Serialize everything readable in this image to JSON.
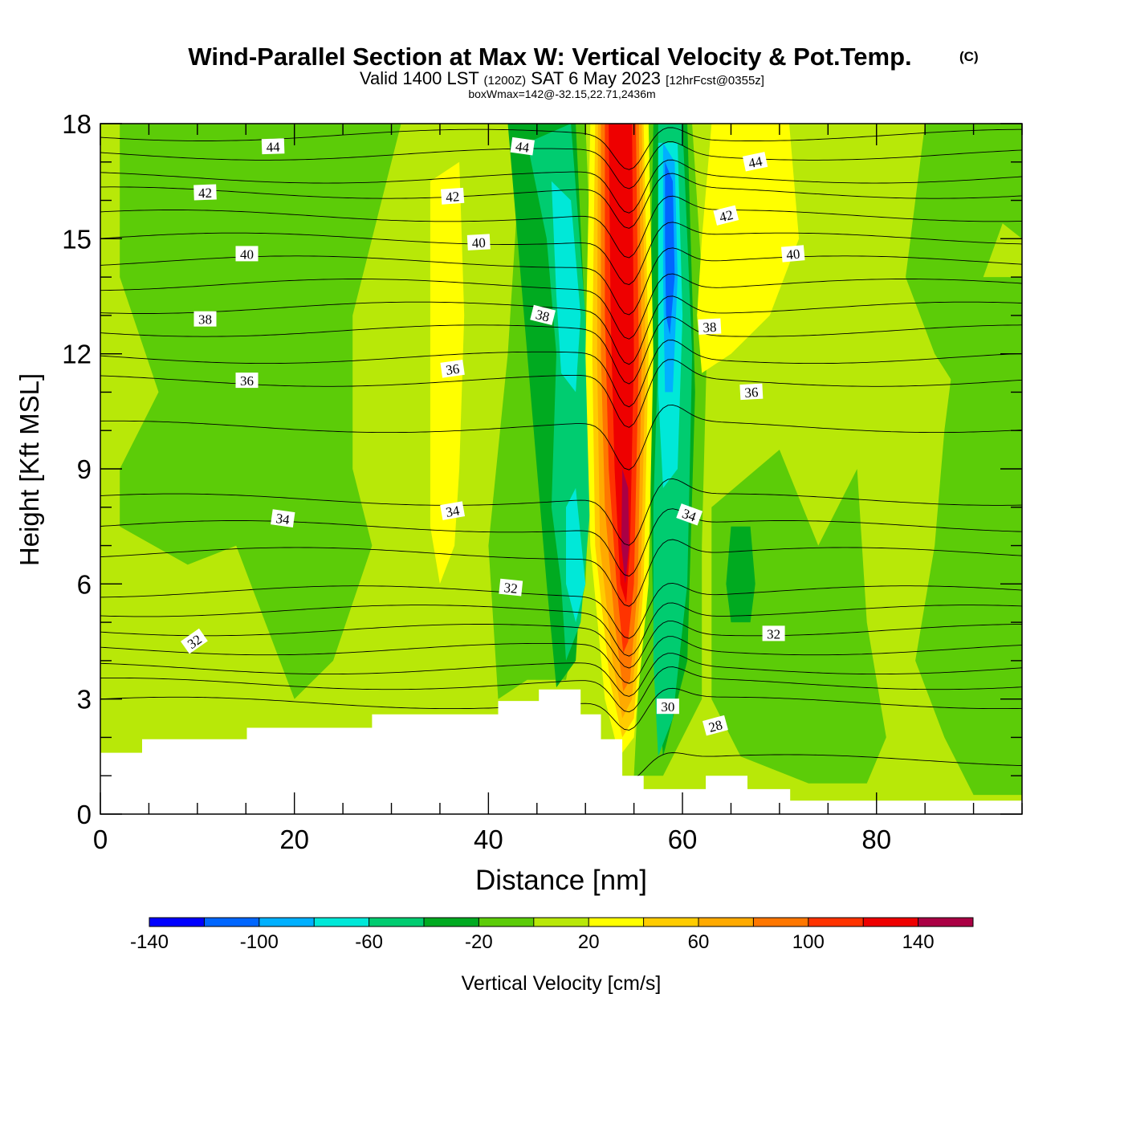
{
  "chart_data": {
    "type": "heatmap",
    "title": "Wind-Parallel Section at Max W: Vertical Velocity & Pot.Temp.",
    "copyright_mark": "(C)",
    "subtitle_valid": "Valid 1400 LST",
    "subtitle_utc": "(1200Z)",
    "subtitle_date": "SAT 6 May 2023",
    "subtitle_forecast": "[12hrFcst@0355z]",
    "subtitle_box": "boxWmax=142@-32.15,22.71,2436m",
    "xlabel": "Distance [nm]",
    "ylabel": "Height [Kft MSL]",
    "xlim": [
      0,
      95
    ],
    "ylim": [
      0,
      18
    ],
    "x_ticks": [
      0,
      20,
      40,
      60,
      80
    ],
    "y_ticks": [
      0,
      3,
      6,
      9,
      12,
      15,
      18
    ],
    "colorbar": {
      "label": "Vertical Velocity [cm/s]",
      "bounds": [
        -140,
        160
      ],
      "tick_values": [
        -140,
        -100,
        -60,
        -20,
        20,
        60,
        100,
        140
      ],
      "tick_labels": [
        "-140",
        "-100",
        "-60",
        "-20",
        "20",
        "60",
        "100",
        "140"
      ],
      "colors": [
        "#0000ff",
        "#0066ff",
        "#00b0ff",
        "#00e8d8",
        "#00cc70",
        "#00aa20",
        "#5ccc08",
        "#b8e808",
        "#ffff00",
        "#ffcc00",
        "#ffaa00",
        "#ff7700",
        "#ff3300",
        "#ee0000",
        "#aa0044"
      ]
    },
    "terrain": [
      [
        0,
        1.6
      ],
      [
        4.3,
        1.6
      ],
      [
        4.3,
        1.95
      ],
      [
        15.1,
        1.95
      ],
      [
        15.1,
        2.25
      ],
      [
        28,
        2.25
      ],
      [
        28,
        2.6
      ],
      [
        41,
        2.6
      ],
      [
        41,
        2.95
      ],
      [
        45.2,
        2.95
      ],
      [
        45.2,
        3.25
      ],
      [
        49.5,
        3.25
      ],
      [
        49.5,
        2.6
      ],
      [
        51.6,
        2.6
      ],
      [
        51.6,
        1.95
      ],
      [
        53.8,
        1.95
      ],
      [
        53.8,
        1.0
      ],
      [
        56,
        1.0
      ],
      [
        56,
        0.65
      ],
      [
        62.4,
        0.65
      ],
      [
        62.4,
        1.0
      ],
      [
        66.7,
        1.0
      ],
      [
        66.7,
        0.65
      ],
      [
        71.1,
        0.65
      ],
      [
        71.1,
        0.35
      ],
      [
        95,
        0.35
      ]
    ],
    "w_regions": [
      {
        "w": -10,
        "poly": [
          [
            2,
            18
          ],
          [
            31,
            18
          ],
          [
            29,
            16
          ],
          [
            26,
            13
          ],
          [
            26,
            9
          ],
          [
            28,
            7
          ],
          [
            24,
            4
          ],
          [
            20,
            3
          ],
          [
            17,
            5
          ],
          [
            14,
            7
          ],
          [
            9,
            6.5
          ],
          [
            2,
            7.5
          ],
          [
            2,
            9
          ],
          [
            6,
            11
          ],
          [
            2,
            14
          ]
        ]
      },
      {
        "w": -10,
        "poly": [
          [
            45,
            18
          ],
          [
            50,
            18
          ],
          [
            51,
            12
          ],
          [
            50,
            6
          ],
          [
            48,
            3.5
          ],
          [
            44,
            3.5
          ],
          [
            41,
            3
          ],
          [
            40,
            7
          ],
          [
            42,
            12
          ],
          [
            43,
            16
          ]
        ]
      },
      {
        "w": -10,
        "poly": [
          [
            56,
            18
          ],
          [
            61,
            18
          ],
          [
            62.5,
            12
          ],
          [
            62,
            7
          ],
          [
            62,
            3
          ],
          [
            58,
            1
          ],
          [
            55,
            1
          ],
          [
            56,
            6
          ],
          [
            55,
            12
          ]
        ]
      },
      {
        "w": -10,
        "poly": [
          [
            63,
            8
          ],
          [
            70,
            9.5
          ],
          [
            74,
            7
          ],
          [
            78,
            9
          ],
          [
            79,
            5
          ],
          [
            81,
            2
          ],
          [
            79,
            0.8
          ],
          [
            73,
            0.8
          ],
          [
            66,
            1.5
          ],
          [
            63,
            3
          ]
        ]
      },
      {
        "w": -10,
        "poly": [
          [
            85,
            18
          ],
          [
            95,
            18
          ],
          [
            95,
            15
          ],
          [
            93,
            15.4
          ],
          [
            91,
            14
          ],
          [
            88,
            11.2
          ],
          [
            86,
            12
          ],
          [
            83,
            14
          ]
        ]
      },
      {
        "w": -10,
        "poly": [
          [
            95,
            14
          ],
          [
            89,
            14
          ],
          [
            87,
            10
          ],
          [
            86,
            7
          ],
          [
            84,
            4
          ],
          [
            87,
            2
          ],
          [
            90,
            0.5
          ],
          [
            95,
            0.5
          ]
        ]
      },
      {
        "w": -30,
        "poly": [
          [
            42,
            18
          ],
          [
            49,
            18
          ],
          [
            50.5,
            10
          ],
          [
            49,
            4
          ],
          [
            47,
            3.3
          ],
          [
            46,
            6
          ],
          [
            44,
            12
          ]
        ]
      },
      {
        "w": -30,
        "poly": [
          [
            57,
            18
          ],
          [
            60.5,
            18
          ],
          [
            61.3,
            11
          ],
          [
            60.5,
            4
          ],
          [
            58,
            1.5
          ],
          [
            57,
            5
          ],
          [
            56.5,
            11
          ]
        ]
      },
      {
        "w": -30,
        "poly": [
          [
            65,
            7.5
          ],
          [
            67,
            7.5
          ],
          [
            67.5,
            6
          ],
          [
            67,
            5
          ],
          [
            65,
            5
          ],
          [
            64.5,
            6
          ]
        ]
      },
      {
        "w": 30,
        "poly": [
          [
            34,
            16.5
          ],
          [
            37,
            17
          ],
          [
            37.5,
            13
          ],
          [
            37,
            9
          ],
          [
            36.5,
            7
          ],
          [
            35,
            6
          ],
          [
            34,
            7.5
          ],
          [
            34,
            13
          ]
        ]
      },
      {
        "w": 30,
        "poly": [
          [
            63,
            18
          ],
          [
            71,
            18
          ],
          [
            72,
            15
          ],
          [
            69,
            13
          ],
          [
            65,
            12
          ],
          [
            62,
            11.5
          ],
          [
            61.5,
            13
          ],
          [
            62,
            15
          ]
        ]
      },
      {
        "w": -50,
        "poly": [
          [
            44,
            17.5
          ],
          [
            48.5,
            18
          ],
          [
            50,
            13
          ],
          [
            50.5,
            8
          ],
          [
            49.5,
            5
          ],
          [
            48,
            4
          ],
          [
            47.5,
            6
          ],
          [
            46.5,
            8
          ],
          [
            47,
            12
          ],
          [
            46,
            15
          ]
        ]
      },
      {
        "w": -50,
        "poly": [
          [
            57.5,
            18
          ],
          [
            60,
            18
          ],
          [
            61,
            12
          ],
          [
            60.5,
            6
          ],
          [
            59,
            2.5
          ],
          [
            57.5,
            1.5
          ],
          [
            57,
            4
          ],
          [
            57,
            8
          ],
          [
            57.5,
            12
          ]
        ]
      },
      {
        "w": -70,
        "poly": [
          [
            46.5,
            16.5
          ],
          [
            48.5,
            16
          ],
          [
            49.5,
            13
          ],
          [
            49,
            11
          ],
          [
            47.5,
            11.5
          ],
          [
            47,
            13.5
          ]
        ]
      },
      {
        "w": -70,
        "poly": [
          [
            48,
            8
          ],
          [
            49,
            8.5
          ],
          [
            50,
            6
          ],
          [
            49,
            5
          ],
          [
            48,
            6
          ]
        ]
      },
      {
        "w": -70,
        "poly": [
          [
            57.5,
            17.5
          ],
          [
            59.5,
            17.5
          ],
          [
            60,
            13
          ],
          [
            59.5,
            9
          ],
          [
            58,
            8.5
          ],
          [
            57.5,
            11
          ],
          [
            57.5,
            14
          ]
        ]
      },
      {
        "w": -90,
        "poly": [
          [
            58,
            17.5
          ],
          [
            59.2,
            17
          ],
          [
            59.5,
            14
          ],
          [
            59,
            11
          ],
          [
            58.2,
            11
          ],
          [
            58,
            14
          ]
        ]
      },
      {
        "w": -110,
        "poly": [
          [
            58.2,
            17
          ],
          [
            59,
            16.5
          ],
          [
            59.2,
            14
          ],
          [
            58.7,
            12.5
          ],
          [
            58.3,
            13
          ],
          [
            58.2,
            15
          ]
        ]
      },
      {
        "w": 30,
        "poly": [
          [
            50.5,
            18
          ],
          [
            56.5,
            18
          ],
          [
            57,
            12
          ],
          [
            56.5,
            6
          ],
          [
            55,
            2
          ],
          [
            53.5,
            1.5
          ],
          [
            52,
            3
          ],
          [
            50.5,
            7
          ],
          [
            50,
            12
          ]
        ]
      },
      {
        "w": 50,
        "poly": [
          [
            51,
            18
          ],
          [
            56,
            18
          ],
          [
            56.5,
            12
          ],
          [
            56,
            6
          ],
          [
            55,
            2.5
          ],
          [
            53.8,
            2
          ],
          [
            52.5,
            3.5
          ],
          [
            51,
            7
          ],
          [
            50.7,
            12
          ]
        ]
      },
      {
        "w": 70,
        "poly": [
          [
            51.3,
            18
          ],
          [
            55.8,
            18
          ],
          [
            56.2,
            12
          ],
          [
            55.7,
            6
          ],
          [
            54.8,
            3
          ],
          [
            53.8,
            2.5
          ],
          [
            52.8,
            4
          ],
          [
            51.5,
            7
          ],
          [
            51.2,
            12
          ]
        ]
      },
      {
        "w": 90,
        "poly": [
          [
            51.6,
            18
          ],
          [
            55.5,
            18
          ],
          [
            55.8,
            12
          ],
          [
            55.4,
            6
          ],
          [
            54.6,
            3.5
          ],
          [
            53.9,
            3.2
          ],
          [
            53,
            5
          ],
          [
            52,
            8
          ],
          [
            51.6,
            12
          ]
        ]
      },
      {
        "w": 110,
        "poly": [
          [
            52,
            18
          ],
          [
            55.2,
            18
          ],
          [
            55.5,
            12
          ],
          [
            55,
            6
          ],
          [
            54.4,
            4.5
          ],
          [
            53.9,
            4.2
          ],
          [
            53.2,
            6
          ],
          [
            52.4,
            9
          ],
          [
            52,
            13
          ]
        ]
      },
      {
        "w": 130,
        "poly": [
          [
            52.4,
            18
          ],
          [
            54.8,
            18
          ],
          [
            55,
            12
          ],
          [
            54.6,
            7
          ],
          [
            54.2,
            5.5
          ],
          [
            53.6,
            6
          ],
          [
            53,
            9
          ],
          [
            52.6,
            13
          ]
        ]
      },
      {
        "w": 150,
        "poly": [
          [
            53.8,
            9
          ],
          [
            54.4,
            8.5
          ],
          [
            54.5,
            7
          ],
          [
            54.1,
            6
          ],
          [
            53.7,
            7
          ]
        ]
      }
    ],
    "theta_contours": [
      {
        "y": 1.4,
        "dip": 0.5
      },
      {
        "y": 2.9,
        "dip": 0.8
      },
      {
        "y": 3.4,
        "dip": 0.9
      },
      {
        "y": 3.8,
        "dip": 0.9
      },
      {
        "y": 4.3,
        "dip": 1.0
      },
      {
        "y": 4.8,
        "dip": 1.0
      },
      {
        "y": 5.3,
        "dip": 1.1
      },
      {
        "y": 5.8,
        "dip": 1.1
      },
      {
        "y": 6.8,
        "dip": 1.3
      },
      {
        "y": 7.5,
        "dip": 1.3
      },
      {
        "y": 8.2,
        "dip": 1.3
      },
      {
        "y": 10.1,
        "dip": 1.3
      },
      {
        "y": 11.3,
        "dip": 1.4
      },
      {
        "y": 11.9,
        "dip": 1.4
      },
      {
        "y": 12.6,
        "dip": 1.4
      },
      {
        "y": 13.2,
        "dip": 1.4
      },
      {
        "y": 13.8,
        "dip": 1.3
      },
      {
        "y": 14.4,
        "dip": 1.3
      },
      {
        "y": 15.0,
        "dip": 1.2
      },
      {
        "y": 15.6,
        "dip": 1.2
      },
      {
        "y": 16.2,
        "dip": 1.1
      },
      {
        "y": 16.6,
        "dip": 1.1
      },
      {
        "y": 17.2,
        "dip": 1.0
      },
      {
        "y": 17.7,
        "dip": 0.9
      }
    ],
    "contour_labels": [
      {
        "text": "44",
        "x": 17.8,
        "y": 17.4,
        "angle": -2
      },
      {
        "text": "44",
        "x": 43.5,
        "y": 17.4,
        "angle": 8
      },
      {
        "text": "44",
        "x": 67.5,
        "y": 17.0,
        "angle": -12
      },
      {
        "text": "42",
        "x": 10.8,
        "y": 16.2,
        "angle": -2
      },
      {
        "text": "42",
        "x": 36.3,
        "y": 16.1,
        "angle": -4
      },
      {
        "text": "42",
        "x": 64.5,
        "y": 15.6,
        "angle": -14
      },
      {
        "text": "40",
        "x": 15.1,
        "y": 14.6,
        "angle": 0
      },
      {
        "text": "40",
        "x": 39.0,
        "y": 14.9,
        "angle": -3
      },
      {
        "text": "40",
        "x": 71.4,
        "y": 14.6,
        "angle": -5
      },
      {
        "text": "38",
        "x": 10.8,
        "y": 12.9,
        "angle": 0
      },
      {
        "text": "38",
        "x": 45.6,
        "y": 13.0,
        "angle": 14
      },
      {
        "text": "38",
        "x": 62.8,
        "y": 12.7,
        "angle": -3
      },
      {
        "text": "36",
        "x": 15.1,
        "y": 11.3,
        "angle": 0
      },
      {
        "text": "36",
        "x": 36.3,
        "y": 11.6,
        "angle": -8
      },
      {
        "text": "36",
        "x": 67.1,
        "y": 11.0,
        "angle": -3
      },
      {
        "text": "34",
        "x": 18.8,
        "y": 7.7,
        "angle": 8
      },
      {
        "text": "34",
        "x": 36.3,
        "y": 7.9,
        "angle": -10
      },
      {
        "text": "34",
        "x": 60.7,
        "y": 7.8,
        "angle": 20
      },
      {
        "text": "32",
        "x": 9.7,
        "y": 4.5,
        "angle": -35
      },
      {
        "text": "32",
        "x": 42.3,
        "y": 5.9,
        "angle": 6
      },
      {
        "text": "32",
        "x": 69.4,
        "y": 4.7,
        "angle": 0
      },
      {
        "text": "30",
        "x": 58.5,
        "y": 2.8,
        "angle": 0
      },
      {
        "text": "28",
        "x": 63.4,
        "y": 2.3,
        "angle": -15
      }
    ]
  }
}
